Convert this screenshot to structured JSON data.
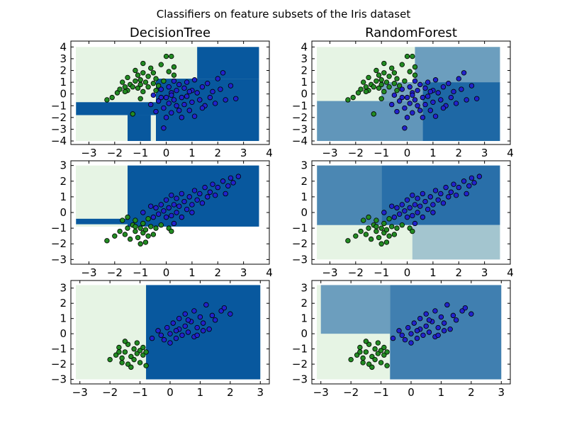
{
  "figure": {
    "suptitle": "Classifiers on feature subsets of the Iris dataset"
  },
  "columns": [
    {
      "title": "DecisionTree"
    },
    {
      "title": "RandomForest"
    }
  ],
  "colors": {
    "background": "#ffffff",
    "class_0_region": "#e6f4e4",
    "class_1_region": "#08589e",
    "rf_mixed_region": "#4d7f99",
    "class_0_point": "#228b22",
    "class_1_point": "#2222cc",
    "point_edge": "#000000"
  },
  "chart_data": [
    {
      "type": "scatter",
      "subtype": "decision-surface",
      "title": "DecisionTree",
      "row": 1,
      "col": 1,
      "xlim": [
        -3.7,
        4.0
      ],
      "ylim": [
        -4.3,
        4.5
      ],
      "xticks": [
        "-3",
        "-2",
        "-1",
        "0",
        "1",
        "2",
        "3",
        "4"
      ],
      "yticks": [
        "-4",
        "-3",
        "-2",
        "-1",
        "0",
        "1",
        "2",
        "3",
        "4"
      ],
      "grid": false,
      "points_from": "row1",
      "regions": [
        {
          "cls": 1,
          "x": [
            1.2,
            3.6
          ],
          "y": [
            1.3,
            4.0
          ]
        },
        {
          "cls": 1,
          "x": [
            -0.4,
            3.6
          ],
          "y": [
            -4.0,
            1.3
          ]
        },
        {
          "cls": 1,
          "x": [
            -3.5,
            -0.4
          ],
          "y": [
            -1.8,
            -0.7
          ]
        },
        {
          "cls": 1,
          "x": [
            -1.5,
            -0.6
          ],
          "y": [
            -4.0,
            -1.8
          ]
        }
      ]
    },
    {
      "type": "scatter",
      "subtype": "decision-surface",
      "title": "RandomForest",
      "row": 1,
      "col": 2,
      "xlim": [
        -3.7,
        4.0
      ],
      "ylim": [
        -4.3,
        4.5
      ],
      "xticks": [
        "-3",
        "-2",
        "-1",
        "0",
        "1",
        "2",
        "3",
        "4"
      ],
      "yticks": [
        "-4",
        "-3",
        "-2",
        "-1",
        "0",
        "1",
        "2",
        "3",
        "4"
      ],
      "grid": false,
      "points_from": "row1",
      "regions": [
        {
          "cls": 0.9,
          "x": [
            0.6,
            3.6
          ],
          "y": [
            -4.0,
            1.0
          ]
        },
        {
          "cls": 0.55,
          "x": [
            0.3,
            3.6
          ],
          "y": [
            1.0,
            4.0
          ]
        },
        {
          "cls": 0.6,
          "x": [
            -3.5,
            0.6
          ],
          "y": [
            -4.0,
            -0.6
          ]
        },
        {
          "cls": 0.5,
          "x": [
            -1.0,
            0.6
          ],
          "y": [
            -0.6,
            1.0
          ]
        }
      ]
    },
    {
      "type": "scatter",
      "subtype": "decision-surface",
      "row": 2,
      "col": 1,
      "xlim": [
        -3.7,
        4.0
      ],
      "ylim": [
        -3.3,
        3.3
      ],
      "xticks": [
        "-3",
        "-2",
        "-1",
        "0",
        "1",
        "2",
        "3",
        "4"
      ],
      "yticks": [
        "-3",
        "-2",
        "-1",
        "0",
        "1",
        "2",
        "3"
      ],
      "grid": false,
      "points_from": "row2",
      "regions": [
        {
          "cls": 1,
          "x": [
            -1.5,
            3.6
          ],
          "y": [
            -0.9,
            3.0
          ]
        },
        {
          "cls": 1,
          "x": [
            -3.5,
            -1.5
          ],
          "y": [
            -0.75,
            -0.4
          ]
        }
      ]
    },
    {
      "type": "scatter",
      "subtype": "decision-surface",
      "row": 2,
      "col": 2,
      "xlim": [
        -3.7,
        4.0
      ],
      "ylim": [
        -3.3,
        3.3
      ],
      "xticks": [
        "-3",
        "-2",
        "-1",
        "0",
        "1",
        "2",
        "3",
        "4"
      ],
      "yticks": [
        "-3",
        "-2",
        "-1",
        "0",
        "1",
        "2",
        "3"
      ],
      "grid": false,
      "points_from": "row2",
      "regions": [
        {
          "cls": 0.85,
          "x": [
            -1.0,
            3.6
          ],
          "y": [
            -0.8,
            3.0
          ]
        },
        {
          "cls": 0.7,
          "x": [
            -3.5,
            -1.0
          ],
          "y": [
            -0.8,
            3.0
          ]
        },
        {
          "cls": 0.3,
          "x": [
            0.2,
            3.6
          ],
          "y": [
            -3.0,
            -0.8
          ]
        }
      ]
    },
    {
      "type": "scatter",
      "subtype": "decision-surface",
      "row": 3,
      "col": 1,
      "xlim": [
        -3.3,
        3.3
      ],
      "ylim": [
        -3.3,
        3.5
      ],
      "xticks": [
        "-3",
        "-2",
        "-1",
        "0",
        "1",
        "2",
        "3"
      ],
      "yticks": [
        "-3",
        "-2",
        "-1",
        "0",
        "1",
        "2",
        "3"
      ],
      "grid": false,
      "points_from": "row3",
      "regions": [
        {
          "cls": 1,
          "x": [
            -0.8,
            3.0
          ],
          "y": [
            -3.0,
            3.2
          ]
        }
      ]
    },
    {
      "type": "scatter",
      "subtype": "decision-surface",
      "row": 3,
      "col": 2,
      "xlim": [
        -3.3,
        3.3
      ],
      "ylim": [
        -3.3,
        3.5
      ],
      "xticks": [
        "-3",
        "-2",
        "-1",
        "0",
        "1",
        "2",
        "3"
      ],
      "yticks": [
        "-3",
        "-2",
        "-1",
        "0",
        "1",
        "2",
        "3"
      ],
      "grid": false,
      "points_from": "row3",
      "regions": [
        {
          "cls": 0.55,
          "x": [
            -3.0,
            -0.7
          ],
          "y": [
            0.0,
            3.2
          ]
        },
        {
          "cls": 0.75,
          "x": [
            -0.7,
            3.0
          ],
          "y": [
            -3.0,
            3.2
          ]
        }
      ]
    }
  ],
  "points": {
    "row1": {
      "class_0": [
        [
          -2.3,
          -0.5
        ],
        [
          -2.1,
          -0.3
        ],
        [
          -1.9,
          0.1
        ],
        [
          -1.8,
          0.4
        ],
        [
          -1.7,
          1.0
        ],
        [
          -1.6,
          0.6
        ],
        [
          -1.5,
          0.3
        ],
        [
          -1.5,
          1.4
        ],
        [
          -1.4,
          0.8
        ],
        [
          -1.3,
          0.6
        ],
        [
          -1.2,
          1.1
        ],
        [
          -1.2,
          2.0
        ],
        [
          -1.1,
          0.5
        ],
        [
          -1.1,
          1.6
        ],
        [
          -1.0,
          0.8
        ],
        [
          -1.0,
          1.2
        ],
        [
          -0.9,
          0.2
        ],
        [
          -0.9,
          2.6
        ],
        [
          -0.9,
          1.8
        ],
        [
          -0.8,
          1.0
        ],
        [
          -0.7,
          0.6
        ],
        [
          -0.7,
          1.5
        ],
        [
          -0.6,
          2.2
        ],
        [
          -0.5,
          0.9
        ],
        [
          -0.5,
          1.8
        ],
        [
          -0.4,
          1.3
        ],
        [
          -0.3,
          0.7
        ],
        [
          -0.2,
          2.5
        ],
        [
          -0.1,
          1.1
        ],
        [
          0.0,
          3.2
        ],
        [
          0.1,
          1.9
        ],
        [
          0.3,
          2.3
        ],
        [
          0.3,
          1.6
        ],
        [
          0.2,
          3.2
        ],
        [
          -1.3,
          -1.7
        ],
        [
          -1.0,
          -0.4
        ],
        [
          -0.4,
          0.3
        ],
        [
          -1.6,
          0.2
        ]
      ],
      "class_1": [
        [
          -0.6,
          -0.9
        ],
        [
          -0.5,
          -0.1
        ],
        [
          -0.4,
          -1.5
        ],
        [
          -0.3,
          -0.6
        ],
        [
          -0.2,
          0.4
        ],
        [
          -0.1,
          -1.2
        ],
        [
          0.0,
          -0.3
        ],
        [
          0.0,
          -2.0
        ],
        [
          0.1,
          0.6
        ],
        [
          0.1,
          -0.8
        ],
        [
          0.2,
          -1.6
        ],
        [
          0.2,
          0.1
        ],
        [
          0.3,
          -0.5
        ],
        [
          0.3,
          1.1
        ],
        [
          0.4,
          -1.0
        ],
        [
          0.4,
          0.3
        ],
        [
          0.5,
          -1.4
        ],
        [
          0.5,
          0.8
        ],
        [
          0.6,
          -0.3
        ],
        [
          0.6,
          -2.0
        ],
        [
          0.7,
          0.5
        ],
        [
          0.7,
          -0.9
        ],
        [
          0.8,
          1.0
        ],
        [
          0.8,
          -0.2
        ],
        [
          0.9,
          -1.4
        ],
        [
          1.0,
          0.3
        ],
        [
          1.0,
          -0.7
        ],
        [
          1.1,
          1.2
        ],
        [
          1.1,
          -1.9
        ],
        [
          1.2,
          0.1
        ],
        [
          1.3,
          -0.5
        ],
        [
          1.4,
          0.6
        ],
        [
          1.5,
          -1.0
        ],
        [
          1.6,
          0.9
        ],
        [
          1.7,
          -0.3
        ],
        [
          1.8,
          0.2
        ],
        [
          1.9,
          -0.8
        ],
        [
          2.0,
          1.3
        ],
        [
          2.1,
          0.4
        ],
        [
          2.2,
          1.8
        ],
        [
          2.3,
          -0.5
        ],
        [
          2.5,
          0.7
        ],
        [
          2.7,
          -0.4
        ],
        [
          -0.1,
          -2.9
        ],
        [
          0.2,
          -0.1
        ],
        [
          -0.2,
          -0.3
        ],
        [
          0.9,
          0.2
        ],
        [
          1.4,
          -1.2
        ]
      ]
    },
    "row2": {
      "class_0": [
        [
          -2.3,
          -1.8
        ],
        [
          -2.0,
          -1.5
        ],
        [
          -1.8,
          -1.2
        ],
        [
          -1.7,
          -0.5
        ],
        [
          -1.6,
          -1.4
        ],
        [
          -1.5,
          -1.0
        ],
        [
          -1.4,
          -1.7
        ],
        [
          -1.3,
          -0.8
        ],
        [
          -1.2,
          -1.2
        ],
        [
          -1.2,
          -0.5
        ],
        [
          -1.1,
          -1.6
        ],
        [
          -1.0,
          -1.0
        ],
        [
          -1.0,
          -2.0
        ],
        [
          -0.9,
          -1.3
        ],
        [
          -0.9,
          -0.7
        ],
        [
          -0.8,
          -1.9
        ],
        [
          -0.8,
          -1.1
        ],
        [
          -0.7,
          -1.5
        ],
        [
          -0.6,
          -0.9
        ],
        [
          -0.5,
          -1.4
        ],
        [
          -0.4,
          -1.0
        ],
        [
          -0.2,
          -0.8
        ],
        [
          0.1,
          -1.0
        ],
        [
          0.2,
          -1.2
        ],
        [
          -1.5,
          -0.3
        ],
        [
          -1.2,
          -0.9
        ],
        [
          -0.7,
          -0.4
        ]
      ],
      "class_1": [
        [
          -0.5,
          -0.3
        ],
        [
          -0.4,
          0.3
        ],
        [
          -0.3,
          -0.1
        ],
        [
          -0.2,
          0.5
        ],
        [
          -0.1,
          0.1
        ],
        [
          0.0,
          -0.3
        ],
        [
          0.0,
          0.8
        ],
        [
          0.1,
          0.3
        ],
        [
          0.2,
          -0.2
        ],
        [
          0.2,
          1.1
        ],
        [
          0.3,
          0.5
        ],
        [
          0.4,
          0.0
        ],
        [
          0.4,
          0.9
        ],
        [
          0.5,
          0.4
        ],
        [
          0.6,
          -0.3
        ],
        [
          0.6,
          1.2
        ],
        [
          0.7,
          0.7
        ],
        [
          0.8,
          0.2
        ],
        [
          0.9,
          1.0
        ],
        [
          1.0,
          0.5
        ],
        [
          1.1,
          1.4
        ],
        [
          1.2,
          0.8
        ],
        [
          1.3,
          1.2
        ],
        [
          1.4,
          0.6
        ],
        [
          1.5,
          1.6
        ],
        [
          1.6,
          1.0
        ],
        [
          1.7,
          1.3
        ],
        [
          1.8,
          1.8
        ],
        [
          1.9,
          1.1
        ],
        [
          2.0,
          1.6
        ],
        [
          2.2,
          2.0
        ],
        [
          2.4,
          1.7
        ],
        [
          2.5,
          2.2
        ],
        [
          2.6,
          1.9
        ],
        [
          2.8,
          2.3
        ],
        [
          -0.9,
          0.0
        ],
        [
          -0.6,
          0.4
        ],
        [
          0.3,
          -0.7
        ],
        [
          1.0,
          0.0
        ],
        [
          2.3,
          1.2
        ]
      ]
    },
    "row3": {
      "class_0": [
        [
          -2.0,
          -1.7
        ],
        [
          -1.8,
          -1.4
        ],
        [
          -1.7,
          -0.9
        ],
        [
          -1.6,
          -1.9
        ],
        [
          -1.5,
          -1.2
        ],
        [
          -1.4,
          -0.7
        ],
        [
          -1.4,
          -2.0
        ],
        [
          -1.3,
          -1.5
        ],
        [
          -1.2,
          -1.0
        ],
        [
          -1.2,
          -1.7
        ],
        [
          -1.1,
          -1.3
        ],
        [
          -1.1,
          -0.6
        ],
        [
          -1.0,
          -1.1
        ],
        [
          -1.0,
          -1.9
        ],
        [
          -0.9,
          -1.4
        ],
        [
          -0.9,
          -0.9
        ],
        [
          -0.8,
          -2.1
        ],
        [
          -0.8,
          -1.2
        ],
        [
          -1.6,
          -1.6
        ],
        [
          -1.3,
          -2.2
        ],
        [
          -1.7,
          -1.2
        ],
        [
          -1.5,
          -0.5
        ]
      ],
      "class_1": [
        [
          -0.6,
          -0.3
        ],
        [
          -0.4,
          0.2
        ],
        [
          -0.2,
          -0.4
        ],
        [
          -0.1,
          0.4
        ],
        [
          0.0,
          0.0
        ],
        [
          0.1,
          0.7
        ],
        [
          0.2,
          -0.3
        ],
        [
          0.3,
          0.3
        ],
        [
          0.3,
          1.0
        ],
        [
          0.4,
          -0.1
        ],
        [
          0.5,
          0.5
        ],
        [
          0.5,
          1.3
        ],
        [
          0.6,
          0.1
        ],
        [
          0.7,
          0.8
        ],
        [
          0.8,
          -0.2
        ],
        [
          0.8,
          1.5
        ],
        [
          0.9,
          0.4
        ],
        [
          1.0,
          1.1
        ],
        [
          1.1,
          0.7
        ],
        [
          1.2,
          1.9
        ],
        [
          1.3,
          0.3
        ],
        [
          1.4,
          1.2
        ],
        [
          1.5,
          0.9
        ],
        [
          1.7,
          1.5
        ],
        [
          1.8,
          1.7
        ],
        [
          2.0,
          1.3
        ],
        [
          0.0,
          -0.6
        ],
        [
          0.2,
          0.2
        ],
        [
          0.6,
          0.9
        ],
        [
          0.9,
          -0.1
        ],
        [
          1.1,
          0.2
        ],
        [
          -0.3,
          -0.1
        ]
      ]
    }
  }
}
